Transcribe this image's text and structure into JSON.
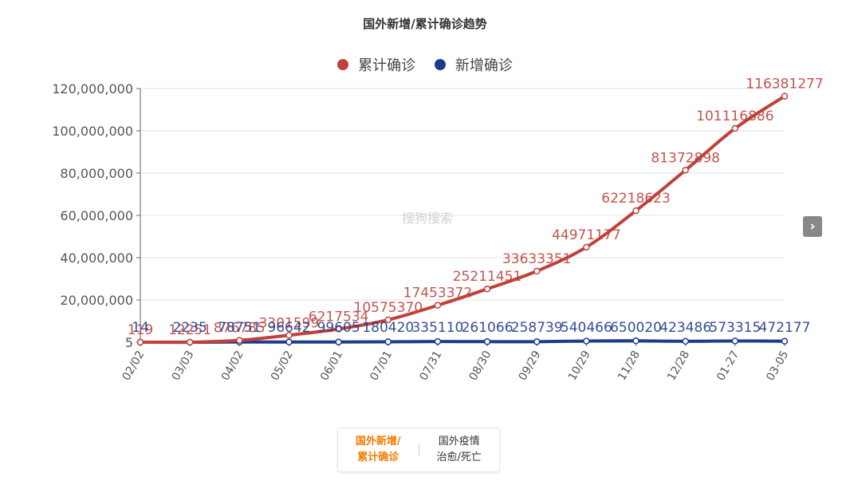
{
  "chart_data": {
    "type": "line",
    "title": "国外新增/累计确诊趋势",
    "x": [
      "02/02",
      "03/03",
      "04/02",
      "05/02",
      "06/01",
      "07/01",
      "07/31",
      "08/30",
      "09/29",
      "10/29",
      "11/28",
      "12/28",
      "01-27",
      "03-05"
    ],
    "series": [
      {
        "name": "累计确诊",
        "color": "#c0403a",
        "values": [
          119,
          12251,
          876785,
          3301599,
          6217534,
          10575370,
          17453372,
          25211451,
          33633351,
          44971177,
          62218623,
          81372898,
          101116886,
          116381277
        ],
        "labels": [
          "119",
          "12251",
          "876785",
          "3301599",
          "6217534",
          "10575370",
          "17453372",
          "25211451",
          "33633351",
          "44971177",
          "62218623",
          "81372898",
          "101116886",
          "116381277"
        ]
      },
      {
        "name": "新增确诊",
        "color": "#1f3a8a",
        "values": [
          14,
          2235,
          78751,
          96642,
          99605,
          180420,
          335110,
          261066,
          258739,
          540466,
          650020,
          423486,
          573315,
          472177
        ],
        "labels": [
          "14",
          "2235",
          "78751",
          "96642",
          "99605",
          "180420",
          "335110",
          "261066",
          "258739",
          "540466",
          "650020",
          "423486",
          "573315",
          "472177"
        ]
      }
    ],
    "y_ticks": [
      "5",
      "20,000,000",
      "40,000,000",
      "60,000,000",
      "80,000,000",
      "100,000,000",
      "120,000,000"
    ],
    "ylim": [
      0,
      120000000
    ],
    "grid": true,
    "legend_position": "top-center"
  },
  "watermark": "搜狗搜索",
  "nav": {
    "next_icon": "›"
  },
  "tabs": [
    {
      "line1": "国外新增/",
      "line2": "累计确诊"
    },
    {
      "line1": "国外疫情",
      "line2": "治愈/死亡"
    }
  ]
}
